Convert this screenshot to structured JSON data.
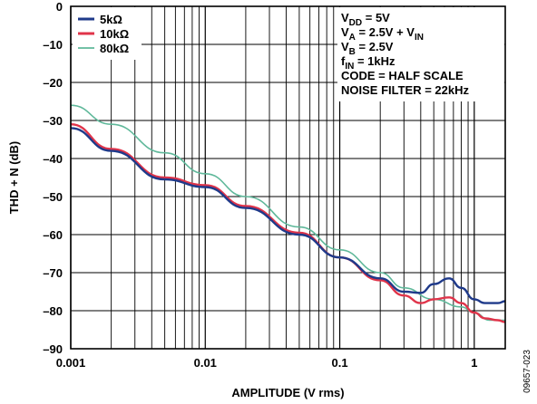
{
  "chart_data": {
    "type": "line",
    "x_scale": "log",
    "xlim": [
      0.001,
      1.7
    ],
    "ylim": [
      -90,
      0
    ],
    "xlabel": "AMPLITUDE (V rms)",
    "ylabel": "THD + N (dB)",
    "x_ticks": [
      {
        "value": 0.001,
        "label": "0.001"
      },
      {
        "value": 0.01,
        "label": "0.01"
      },
      {
        "value": 0.1,
        "label": "0.1"
      },
      {
        "value": 1,
        "label": "1"
      }
    ],
    "y_ticks": [
      {
        "value": 0,
        "label": "0"
      },
      {
        "value": -10,
        "label": "–10"
      },
      {
        "value": -20,
        "label": "–20"
      },
      {
        "value": -30,
        "label": "–30"
      },
      {
        "value": -40,
        "label": "–40"
      },
      {
        "value": -50,
        "label": "–50"
      },
      {
        "value": -60,
        "label": "–60"
      },
      {
        "value": -70,
        "label": "–70"
      },
      {
        "value": -80,
        "label": "–80"
      },
      {
        "value": -90,
        "label": "–90"
      }
    ],
    "grid": true,
    "legend_position": "top-left",
    "series": [
      {
        "name": "5kΩ",
        "color": "#1f3a8a",
        "points": [
          [
            0.001,
            -32
          ],
          [
            0.002,
            -38
          ],
          [
            0.005,
            -45.5
          ],
          [
            0.01,
            -47.5
          ],
          [
            0.02,
            -53
          ],
          [
            0.05,
            -60
          ],
          [
            0.1,
            -66
          ],
          [
            0.2,
            -71.5
          ],
          [
            0.3,
            -75
          ],
          [
            0.4,
            -75.3
          ],
          [
            0.5,
            -73
          ],
          [
            0.65,
            -71.5
          ],
          [
            0.8,
            -74
          ],
          [
            1.0,
            -77
          ],
          [
            1.2,
            -78
          ],
          [
            1.5,
            -78
          ],
          [
            1.7,
            -77.5
          ]
        ]
      },
      {
        "name": "10kΩ",
        "color": "#e0344a",
        "points": [
          [
            0.001,
            -31
          ],
          [
            0.002,
            -37.5
          ],
          [
            0.005,
            -45
          ],
          [
            0.01,
            -47
          ],
          [
            0.02,
            -52.5
          ],
          [
            0.05,
            -59.5
          ],
          [
            0.1,
            -66
          ],
          [
            0.2,
            -72
          ],
          [
            0.3,
            -76
          ],
          [
            0.4,
            -78
          ],
          [
            0.5,
            -77
          ],
          [
            0.65,
            -76.5
          ],
          [
            0.8,
            -78
          ],
          [
            1.0,
            -80.5
          ],
          [
            1.2,
            -82
          ],
          [
            1.5,
            -82.5
          ],
          [
            1.7,
            -83
          ]
        ]
      },
      {
        "name": "80kΩ",
        "color": "#5fb89a",
        "points": [
          [
            0.001,
            -26
          ],
          [
            0.002,
            -31
          ],
          [
            0.005,
            -38.5
          ],
          [
            0.01,
            -44
          ],
          [
            0.02,
            -50
          ],
          [
            0.05,
            -58
          ],
          [
            0.1,
            -64
          ],
          [
            0.2,
            -70
          ],
          [
            0.3,
            -74
          ],
          [
            0.5,
            -77
          ],
          [
            0.8,
            -79
          ],
          [
            1.0,
            -80.5
          ],
          [
            1.3,
            -82.5
          ],
          [
            1.7,
            -82.5
          ]
        ]
      }
    ],
    "annotations": [
      {
        "base": "V",
        "sub": "DD",
        "rest": " = 5V"
      },
      {
        "base": "V",
        "sub": "A",
        "rest": " = 2.5V + V",
        "sub2": "IN"
      },
      {
        "base": "V",
        "sub": "B",
        "rest": " = 2.5V"
      },
      {
        "base": "f",
        "sub": "IN",
        "rest": " = 1kHz"
      },
      {
        "base": "CODE = HALF SCALE",
        "sub": "",
        "rest": ""
      },
      {
        "base": "NOISE FILTER = 22kHz",
        "sub": "",
        "rest": ""
      }
    ],
    "figure_id": "09657-023"
  }
}
